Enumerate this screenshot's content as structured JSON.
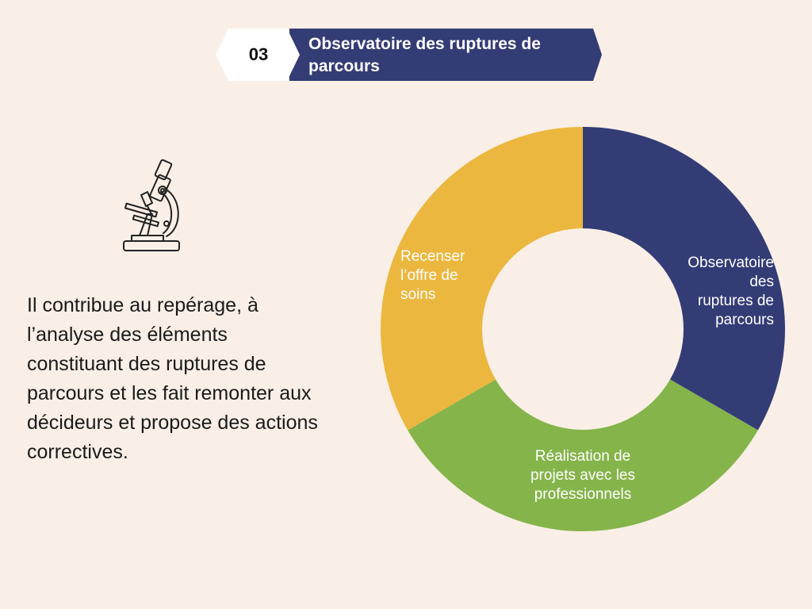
{
  "header": {
    "number": "03",
    "title": "Observatoire des ruptures de parcours",
    "color": "#343c76"
  },
  "icon": "microscope-icon",
  "body_text": "Il contribue au repérage, à l’analyse des éléments constituant des ruptures de parcours et les fait remonter aux décideurs et propose des actions correctives.",
  "chart_data": {
    "type": "pie",
    "donut": true,
    "categories": [
      "Observatoire des ruptures de parcours",
      "Réalisation de projets avec les professionnels",
      "Recenser l’offre de soins"
    ],
    "values": [
      1,
      1,
      1
    ],
    "colors": [
      "#343c76",
      "#85b44a",
      "#ecb73e"
    ]
  }
}
